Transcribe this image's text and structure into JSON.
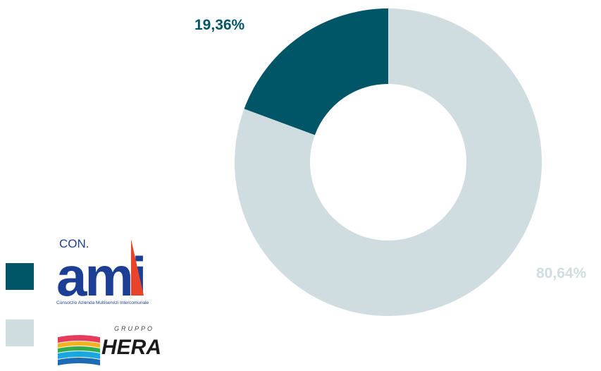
{
  "chart_data": {
    "type": "pie",
    "variant": "donut",
    "title": "",
    "categories": [
      "CON.AMI",
      "Gruppo HERA"
    ],
    "values": [
      19.36,
      80.64
    ],
    "value_labels": [
      "19,36%",
      "80,64%"
    ],
    "colors": [
      "#005566",
      "#cfdde0"
    ],
    "legend": {
      "placement": "bottom-left",
      "entries": [
        {
          "name": "CON.AMI",
          "logo": "conami-logo",
          "color": "#005566"
        },
        {
          "name": "Gruppo HERA",
          "logo": "hera-logo",
          "color": "#cfdde0"
        }
      ]
    }
  },
  "logos": {
    "conami": {
      "top": "CON.",
      "main": "ami",
      "tagline": "Consorzio Azienda Multiservizi Intercomunale"
    },
    "hera": {
      "top": "GRUPPO",
      "main": "HERA"
    }
  }
}
